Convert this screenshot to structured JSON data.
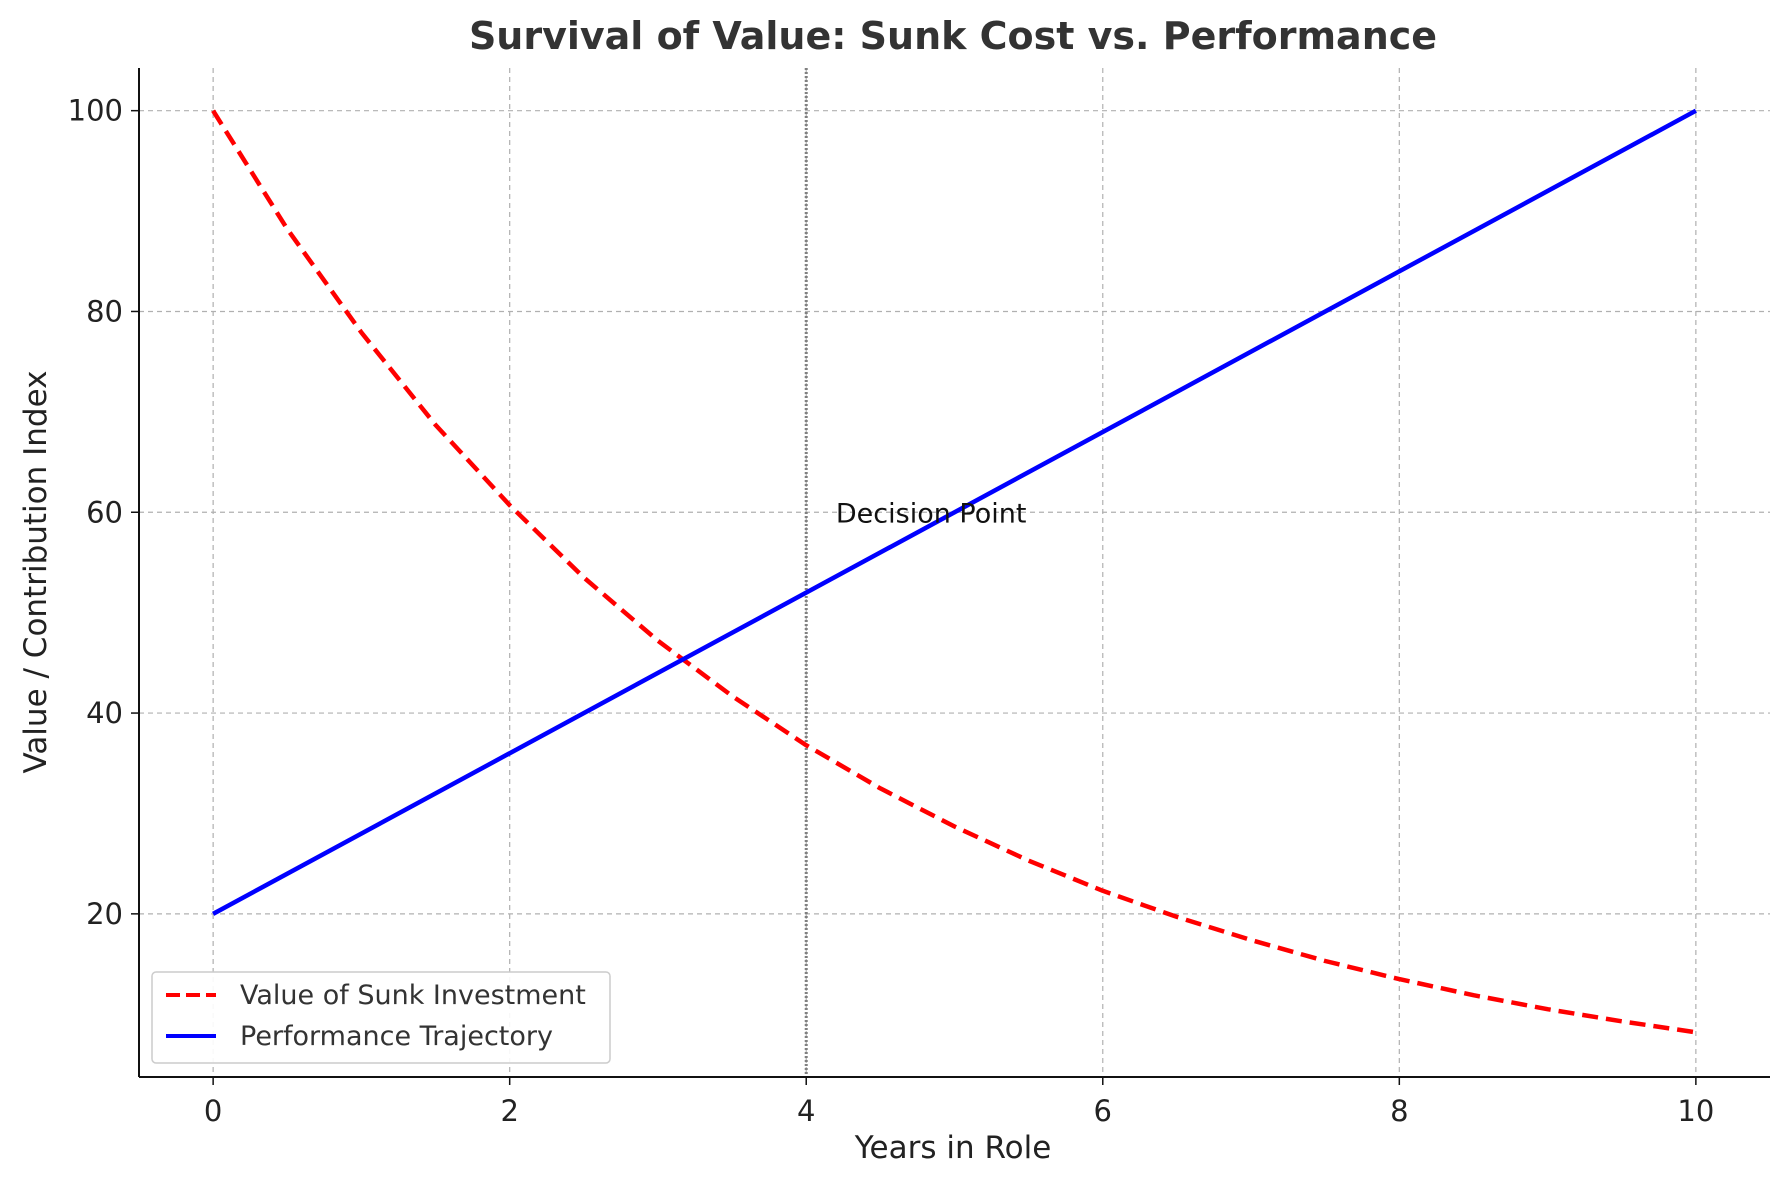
{
  "chart_data": {
    "type": "line",
    "title": "Survival of Value: Sunk Cost vs. Performance",
    "xlabel": "Years in Role",
    "ylabel": "Value / Contribution Index",
    "xlim": [
      -0.5,
      10.5
    ],
    "ylim": [
      3.75,
      104.25
    ],
    "xticks": [
      0,
      2,
      4,
      6,
      8,
      10
    ],
    "yticks": [
      20,
      40,
      60,
      80,
      100
    ],
    "grid": true,
    "legend_position": "lower-left",
    "series": [
      {
        "name": "Value of Sunk Investment",
        "color": "#ff0000",
        "style": "dashed",
        "x": [
          0,
          0.5,
          1,
          1.5,
          2,
          2.5,
          3,
          3.5,
          4,
          4.5,
          5,
          5.5,
          6,
          6.5,
          7,
          7.5,
          8,
          8.5,
          9,
          9.5,
          10
        ],
        "y": [
          100,
          88.2,
          77.9,
          68.7,
          60.7,
          53.5,
          47.2,
          41.7,
          36.8,
          32.5,
          28.7,
          25.3,
          22.3,
          19.7,
          17.4,
          15.3,
          13.5,
          11.9,
          10.5,
          9.3,
          8.2
        ]
      },
      {
        "name": "Performance Trajectory",
        "color": "#0000ff",
        "style": "solid",
        "x": [
          0,
          10
        ],
        "y": [
          20,
          100
        ]
      }
    ],
    "vlines": [
      {
        "x": 4,
        "color": "#808080",
        "style": "dotted"
      }
    ],
    "annotations": [
      {
        "text": "Decision Point",
        "x": 4.2,
        "y": 60
      }
    ]
  }
}
